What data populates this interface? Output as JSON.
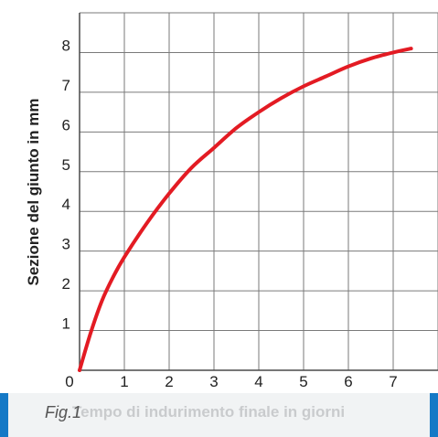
{
  "caption": {
    "figure_label": "Fig.1"
  },
  "chart_data": {
    "type": "line",
    "title": "",
    "xlabel": "Tempo di indurimento finale in giorni",
    "ylabel": "Sezione del giunto in mm",
    "xlim": [
      0,
      8
    ],
    "ylim": [
      0,
      9
    ],
    "x_ticks": [
      "0",
      "1",
      "2",
      "3",
      "4",
      "5",
      "6",
      "7"
    ],
    "y_ticks": [
      "1",
      "2",
      "3",
      "4",
      "5",
      "6",
      "7",
      "8"
    ],
    "grid": true,
    "line_color": "#e31b23",
    "grid_color": "#7a7a7a",
    "series": [
      {
        "x": [
          0,
          0.25,
          0.5,
          0.75,
          1,
          1.5,
          2,
          2.5,
          3,
          3.5,
          4,
          4.5,
          5,
          5.5,
          6,
          6.5,
          7,
          7.4
        ],
        "y": [
          0,
          0.95,
          1.75,
          2.35,
          2.85,
          3.7,
          4.45,
          5.1,
          5.6,
          6.1,
          6.5,
          6.85,
          7.15,
          7.4,
          7.65,
          7.85,
          8.0,
          8.1
        ]
      }
    ]
  }
}
